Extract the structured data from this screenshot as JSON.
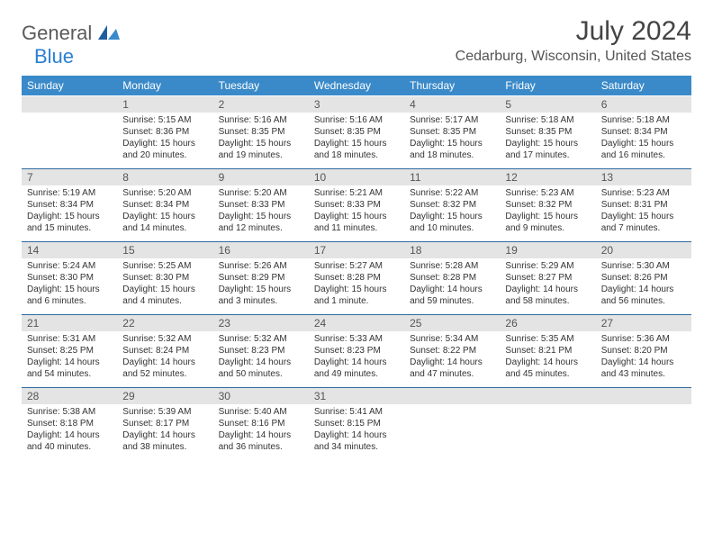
{
  "brand": {
    "general": "General",
    "blue": "Blue"
  },
  "title": "July 2024",
  "location": "Cedarburg, Wisconsin, United States",
  "colors": {
    "header_bg": "#3a8ac9",
    "daynum_bg": "#e4e4e4",
    "week_divider": "#2f6aa0",
    "brand_gray": "#5a5a5a",
    "brand_blue": "#2b7fd1"
  },
  "dow": [
    "Sunday",
    "Monday",
    "Tuesday",
    "Wednesday",
    "Thursday",
    "Friday",
    "Saturday"
  ],
  "weeks": [
    {
      "nums": [
        "",
        "1",
        "2",
        "3",
        "4",
        "5",
        "6"
      ],
      "cells": [
        null,
        {
          "sr": "5:15 AM",
          "ss": "8:36 PM",
          "dl": "15 hours and 20 minutes."
        },
        {
          "sr": "5:16 AM",
          "ss": "8:35 PM",
          "dl": "15 hours and 19 minutes."
        },
        {
          "sr": "5:16 AM",
          "ss": "8:35 PM",
          "dl": "15 hours and 18 minutes."
        },
        {
          "sr": "5:17 AM",
          "ss": "8:35 PM",
          "dl": "15 hours and 18 minutes."
        },
        {
          "sr": "5:18 AM",
          "ss": "8:35 PM",
          "dl": "15 hours and 17 minutes."
        },
        {
          "sr": "5:18 AM",
          "ss": "8:34 PM",
          "dl": "15 hours and 16 minutes."
        }
      ]
    },
    {
      "nums": [
        "7",
        "8",
        "9",
        "10",
        "11",
        "12",
        "13"
      ],
      "cells": [
        {
          "sr": "5:19 AM",
          "ss": "8:34 PM",
          "dl": "15 hours and 15 minutes."
        },
        {
          "sr": "5:20 AM",
          "ss": "8:34 PM",
          "dl": "15 hours and 14 minutes."
        },
        {
          "sr": "5:20 AM",
          "ss": "8:33 PM",
          "dl": "15 hours and 12 minutes."
        },
        {
          "sr": "5:21 AM",
          "ss": "8:33 PM",
          "dl": "15 hours and 11 minutes."
        },
        {
          "sr": "5:22 AM",
          "ss": "8:32 PM",
          "dl": "15 hours and 10 minutes."
        },
        {
          "sr": "5:23 AM",
          "ss": "8:32 PM",
          "dl": "15 hours and 9 minutes."
        },
        {
          "sr": "5:23 AM",
          "ss": "8:31 PM",
          "dl": "15 hours and 7 minutes."
        }
      ]
    },
    {
      "nums": [
        "14",
        "15",
        "16",
        "17",
        "18",
        "19",
        "20"
      ],
      "cells": [
        {
          "sr": "5:24 AM",
          "ss": "8:30 PM",
          "dl": "15 hours and 6 minutes."
        },
        {
          "sr": "5:25 AM",
          "ss": "8:30 PM",
          "dl": "15 hours and 4 minutes."
        },
        {
          "sr": "5:26 AM",
          "ss": "8:29 PM",
          "dl": "15 hours and 3 minutes."
        },
        {
          "sr": "5:27 AM",
          "ss": "8:28 PM",
          "dl": "15 hours and 1 minute."
        },
        {
          "sr": "5:28 AM",
          "ss": "8:28 PM",
          "dl": "14 hours and 59 minutes."
        },
        {
          "sr": "5:29 AM",
          "ss": "8:27 PM",
          "dl": "14 hours and 58 minutes."
        },
        {
          "sr": "5:30 AM",
          "ss": "8:26 PM",
          "dl": "14 hours and 56 minutes."
        }
      ]
    },
    {
      "nums": [
        "21",
        "22",
        "23",
        "24",
        "25",
        "26",
        "27"
      ],
      "cells": [
        {
          "sr": "5:31 AM",
          "ss": "8:25 PM",
          "dl": "14 hours and 54 minutes."
        },
        {
          "sr": "5:32 AM",
          "ss": "8:24 PM",
          "dl": "14 hours and 52 minutes."
        },
        {
          "sr": "5:32 AM",
          "ss": "8:23 PM",
          "dl": "14 hours and 50 minutes."
        },
        {
          "sr": "5:33 AM",
          "ss": "8:23 PM",
          "dl": "14 hours and 49 minutes."
        },
        {
          "sr": "5:34 AM",
          "ss": "8:22 PM",
          "dl": "14 hours and 47 minutes."
        },
        {
          "sr": "5:35 AM",
          "ss": "8:21 PM",
          "dl": "14 hours and 45 minutes."
        },
        {
          "sr": "5:36 AM",
          "ss": "8:20 PM",
          "dl": "14 hours and 43 minutes."
        }
      ]
    },
    {
      "nums": [
        "28",
        "29",
        "30",
        "31",
        "",
        "",
        ""
      ],
      "cells": [
        {
          "sr": "5:38 AM",
          "ss": "8:18 PM",
          "dl": "14 hours and 40 minutes."
        },
        {
          "sr": "5:39 AM",
          "ss": "8:17 PM",
          "dl": "14 hours and 38 minutes."
        },
        {
          "sr": "5:40 AM",
          "ss": "8:16 PM",
          "dl": "14 hours and 36 minutes."
        },
        {
          "sr": "5:41 AM",
          "ss": "8:15 PM",
          "dl": "14 hours and 34 minutes."
        },
        null,
        null,
        null
      ]
    }
  ],
  "labels": {
    "sunrise": "Sunrise: ",
    "sunset": "Sunset: ",
    "daylight": "Daylight: "
  }
}
